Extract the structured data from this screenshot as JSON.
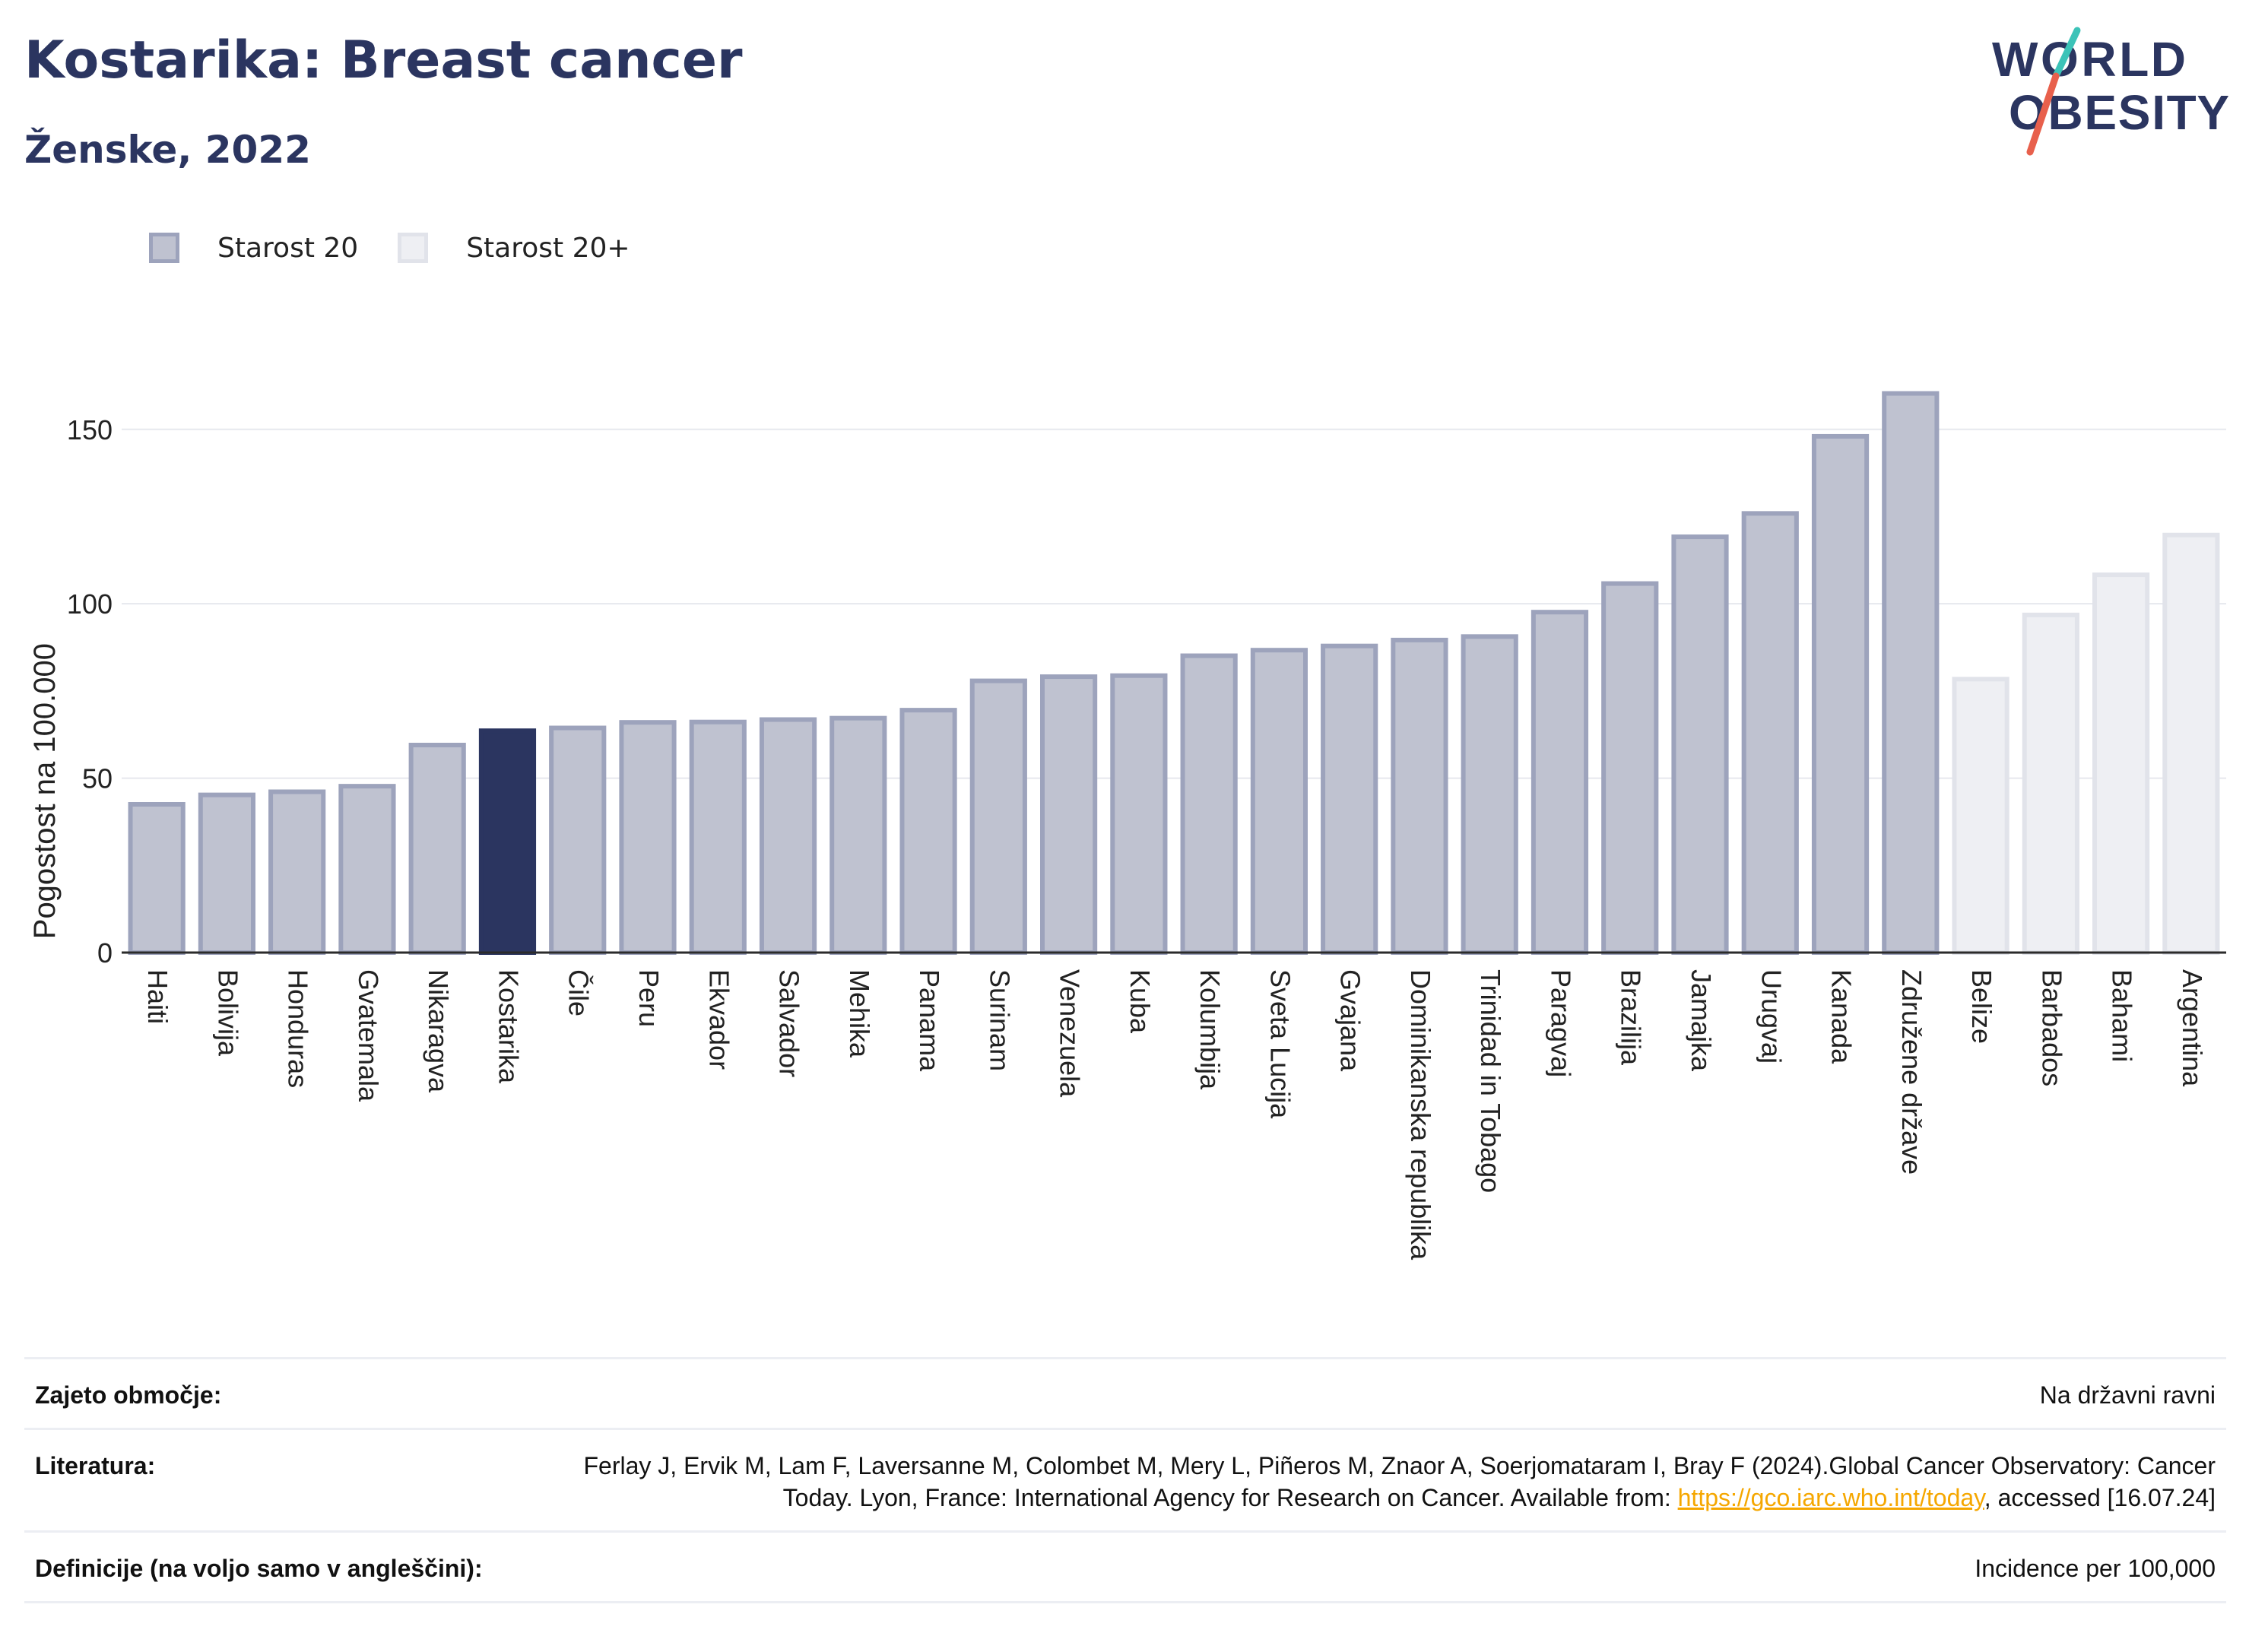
{
  "header": {
    "title": "Kostarika: Breast cancer",
    "subtitle": "Ženske, 2022"
  },
  "logo": {
    "line1": "W O R L D",
    "line2": "O B E S I T Y",
    "accent_teal": "#3cc3b8",
    "accent_red": "#e8604c"
  },
  "legend": {
    "items": [
      {
        "label": "Starost 20",
        "color": "#bfc2d0"
      },
      {
        "label": "Starost 20+",
        "color": "#eeeff3"
      }
    ]
  },
  "colors": {
    "primary": "#bfc2d0",
    "primary_border": "#9da3bc",
    "highlight": "#2b3560",
    "secondary": "#eeeff3",
    "secondary_border": "#e1e3ea",
    "text": "#2b3560"
  },
  "chart_data": {
    "type": "bar",
    "title": "Kostarika: Breast cancer",
    "subtitle": "Ženske, 2022",
    "xlabel": "",
    "ylabel": "Pogostost na 100.000",
    "ylim": [
      0,
      170
    ],
    "yticks": [
      0,
      50,
      100,
      150
    ],
    "grid": true,
    "legend_position": "top-left",
    "highlight": "Kostarika",
    "categories": [
      "Haiti",
      "Bolivija",
      "Honduras",
      "Gvatemala",
      "Nikaragva",
      "Kostarika",
      "Čile",
      "Peru",
      "Ekvador",
      "Salvador",
      "Mehika",
      "Panama",
      "Surinam",
      "Venezuela",
      "Kuba",
      "Kolumbija",
      "Sveta Lucija",
      "Gvajana",
      "Dominikanska republika",
      "Trinidad in Tobago",
      "Paragvaj",
      "Brazilija",
      "Jamajka",
      "Urugvaj",
      "Kanada",
      "Združene države",
      "Belize",
      "Barbados",
      "Bahami",
      "Argentina"
    ],
    "values": [
      42.5,
      45.2,
      46.1,
      47.7,
      59.5,
      63.6,
      64.4,
      66.0,
      66.1,
      66.8,
      67.2,
      69.5,
      77.9,
      79.1,
      79.4,
      85.1,
      86.7,
      87.9,
      89.6,
      90.6,
      97.6,
      105.8,
      119.2,
      125.9,
      148.0,
      160.3,
      78.4,
      96.8,
      108.3,
      119.7
    ],
    "series": [
      {
        "name": "Starost 20",
        "categories": [
          "Haiti",
          "Bolivija",
          "Honduras",
          "Gvatemala",
          "Nikaragva",
          "Kostarika",
          "Čile",
          "Peru",
          "Ekvador",
          "Salvador",
          "Mehika",
          "Panama",
          "Surinam",
          "Venezuela",
          "Kuba",
          "Kolumbija",
          "Sveta Lucija",
          "Gvajana",
          "Dominikanska republika",
          "Trinidad in Tobago",
          "Paragvaj",
          "Brazilija",
          "Jamajka",
          "Urugvaj",
          "Kanada",
          "Združene države"
        ]
      },
      {
        "name": "Starost 20+",
        "categories": [
          "Belize",
          "Barbados",
          "Bahami",
          "Argentina"
        ]
      }
    ]
  },
  "info": {
    "rows": [
      {
        "label": "Zajeto območje:",
        "value": "Na državni ravni"
      },
      {
        "label": "Literatura:",
        "value_before": "Ferlay J, Ervik M, Lam F, Laversanne M, Colombet M, Mery L, Piñeros M, Znaor A, Soerjomataram I, Bray F (2024).Global Cancer Observatory: Cancer Today. Lyon, France: International Agency for Research on Cancer. Available from: ",
        "link": "https://gco.iarc.who.int/today",
        "value_after": ", accessed [16.07.24]"
      },
      {
        "label": "Definicije (na voljo samo v angleščini):",
        "value": "Incidence per 100,000"
      }
    ]
  }
}
